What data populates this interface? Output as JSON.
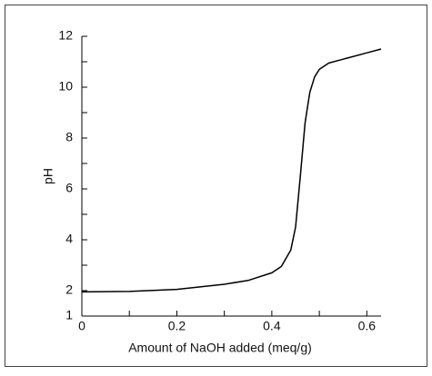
{
  "chart_data": {
    "type": "line",
    "x_label": "Amount of NaOH added (meq/g)",
    "y_label": "pH",
    "x": [
      0,
      0.1,
      0.2,
      0.3,
      0.35,
      0.4,
      0.42,
      0.44,
      0.45,
      0.46,
      0.47,
      0.48,
      0.49,
      0.5,
      0.52,
      0.55,
      0.6,
      0.63
    ],
    "series": [
      {
        "color": "#000000",
        "values": [
          1.95,
          1.97,
          2.05,
          2.25,
          2.4,
          2.7,
          2.95,
          3.6,
          4.5,
          6.5,
          8.6,
          9.8,
          10.4,
          10.7,
          10.95,
          11.1,
          11.35,
          11.5
        ]
      }
    ],
    "xlim": [
      0,
      0.63
    ],
    "xticks": [
      0,
      0.2,
      0.4,
      0.6
    ],
    "xminor": [
      0.1,
      0.3,
      0.5
    ],
    "ylim": [
      1,
      12
    ],
    "yticks": [
      1,
      2,
      4,
      6,
      8,
      10,
      12
    ],
    "yminor": [
      3,
      5,
      7,
      9,
      11
    ],
    "grid": false
  }
}
